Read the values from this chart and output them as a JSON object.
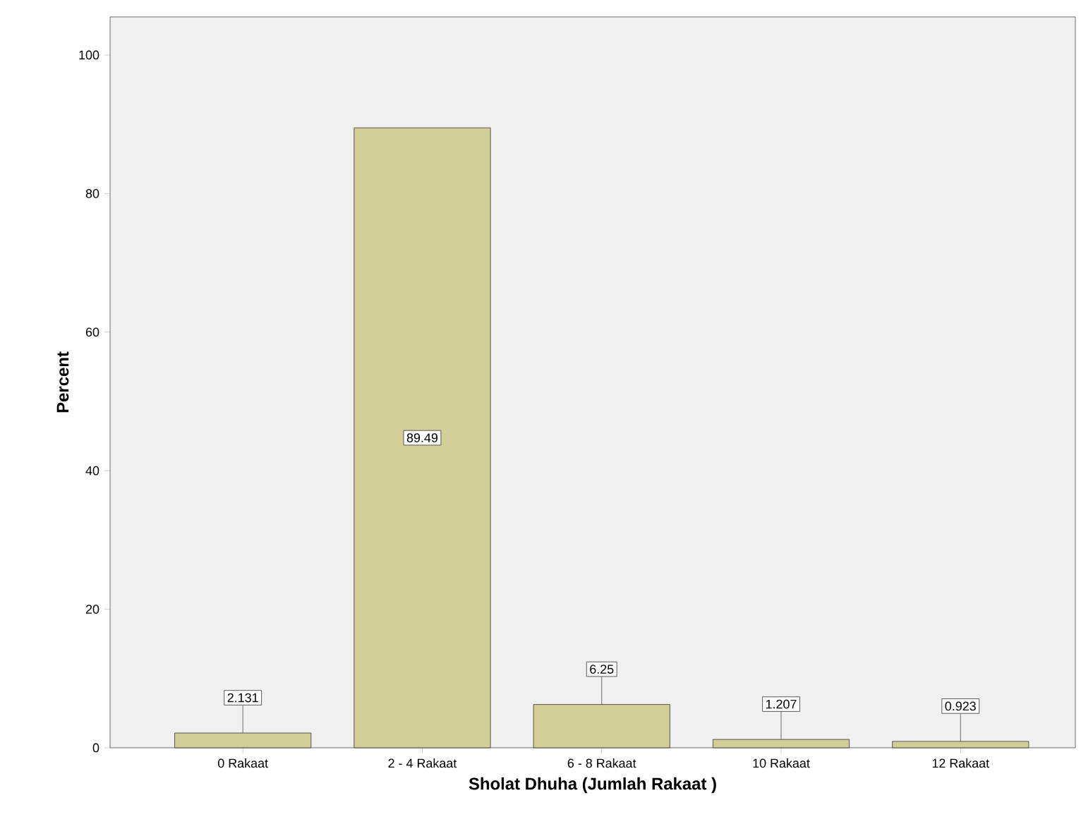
{
  "chart_data": {
    "type": "bar",
    "xlabel": "Sholat Dhuha (Jumlah Rakaat )",
    "ylabel": "Percent",
    "categories": [
      "0 Rakaat",
      "2 - 4 Rakaat",
      "6 - 8 Rakaat",
      "10 Rakaat",
      "12 Rakaat"
    ],
    "values": [
      2.131,
      89.49,
      6.25,
      1.207,
      0.923
    ],
    "color": "#d3ce97",
    "ylim": [
      0,
      105.5
    ],
    "yticks": [
      0,
      20,
      40,
      60,
      80,
      100
    ],
    "data_labels": true
  }
}
